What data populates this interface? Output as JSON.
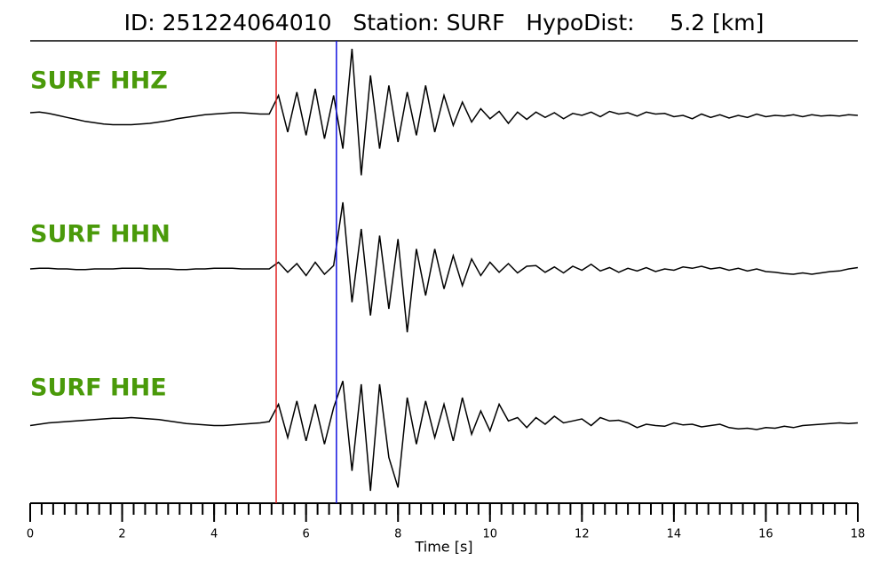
{
  "chart_data": {
    "type": "seismogram",
    "title": "ID: 251224064010   Station: SURF   HypoDist:     5.2 [km]",
    "xlabel": "Time [s]",
    "xlim": [
      0,
      18
    ],
    "xticks": [
      0,
      2,
      4,
      6,
      8,
      10,
      12,
      14,
      16,
      18
    ],
    "xminor_ticks": [
      0,
      0.25,
      0.5,
      0.75,
      1,
      1.25,
      1.5,
      1.75,
      2,
      2.25,
      2.5,
      2.75,
      3,
      3.25,
      3.5,
      3.75,
      4,
      4.25,
      4.5,
      4.75,
      5,
      5.25,
      5.5,
      5.75,
      6,
      6.25,
      6.5,
      6.75,
      7,
      7.25,
      7.5,
      7.75,
      8,
      8.25,
      8.5,
      8.75,
      9,
      9.25,
      9.5,
      9.75,
      10,
      10.25,
      10.5,
      10.75,
      11,
      11.25,
      11.5,
      11.75,
      12,
      12.25,
      12.5,
      12.75,
      13,
      13.25,
      13.5,
      13.75,
      14,
      14.25,
      14.5,
      14.75,
      15,
      15.25,
      15.5,
      15.75,
      16,
      16.25,
      16.5,
      16.75,
      17,
      17.25,
      17.5,
      17.75,
      18
    ],
    "ylim": [
      -1,
      1
    ],
    "picks": [
      {
        "color": "#e02020",
        "x": 5.35
      },
      {
        "color": "#1010e0",
        "x": 6.66
      }
    ],
    "x": [
      0,
      0.2,
      0.4,
      0.6,
      0.8,
      1,
      1.2,
      1.4,
      1.6,
      1.8,
      2,
      2.2,
      2.4,
      2.6,
      2.8,
      3,
      3.2,
      3.4,
      3.6,
      3.8,
      4,
      4.2,
      4.4,
      4.6,
      4.8,
      5,
      5.2,
      5.4,
      5.6,
      5.8,
      6,
      6.2,
      6.4,
      6.6,
      6.8,
      7,
      7.2,
      7.4,
      7.6,
      7.8,
      8,
      8.2,
      8.4,
      8.6,
      8.8,
      9,
      9.2,
      9.4,
      9.6,
      9.8,
      10,
      10.2,
      10.4,
      10.6,
      10.8,
      11,
      11.2,
      11.4,
      11.6,
      11.8,
      12,
      12.2,
      12.4,
      12.6,
      12.8,
      13,
      13.2,
      13.4,
      13.6,
      13.8,
      14,
      14.2,
      14.4,
      14.6,
      14.8,
      15,
      15.2,
      15.4,
      15.6,
      15.8,
      16,
      16.2,
      16.4,
      16.6,
      16.8,
      17,
      17.2,
      17.4,
      17.6,
      17.8,
      18
    ],
    "series": [
      {
        "name": "SURF HHZ",
        "color": "#000000",
        "values": [
          0.04,
          0.05,
          0.03,
          0.0,
          -0.03,
          -0.06,
          -0.09,
          -0.11,
          -0.13,
          -0.14,
          -0.14,
          -0.14,
          -0.13,
          -0.12,
          -0.1,
          -0.08,
          -0.05,
          -0.03,
          -0.01,
          0.01,
          0.02,
          0.03,
          0.04,
          0.04,
          0.03,
          0.02,
          0.02,
          0.3,
          -0.25,
          0.35,
          -0.3,
          0.4,
          -0.35,
          0.3,
          -0.5,
          1.0,
          -0.9,
          0.6,
          -0.5,
          0.45,
          -0.4,
          0.35,
          -0.3,
          0.45,
          -0.25,
          0.3,
          -0.15,
          0.2,
          -0.1,
          0.1,
          -0.05,
          0.06,
          -0.12,
          0.05,
          -0.06,
          0.05,
          -0.03,
          0.04,
          -0.05,
          0.03,
          0.0,
          0.05,
          -0.02,
          0.06,
          0.02,
          0.04,
          -0.01,
          0.05,
          0.02,
          0.03,
          -0.02,
          0.0,
          -0.05,
          0.02,
          -0.03,
          0.01,
          -0.04,
          0.0,
          -0.03,
          0.02,
          -0.02,
          0.0,
          -0.01,
          0.01,
          -0.02,
          0.01,
          -0.01,
          0.0,
          -0.01,
          0.01,
          0.0
        ]
      },
      {
        "name": "SURF HHN",
        "color": "#000000",
        "values": [
          0.0,
          0.01,
          0.01,
          0.0,
          0.0,
          -0.01,
          -0.01,
          0.0,
          0.0,
          0.0,
          0.01,
          0.01,
          0.01,
          0.0,
          0.0,
          0.0,
          -0.01,
          -0.01,
          0.0,
          0.0,
          0.01,
          0.01,
          0.01,
          0.0,
          0.0,
          0.0,
          0.0,
          0.1,
          -0.05,
          0.08,
          -0.1,
          0.1,
          -0.08,
          0.05,
          1.0,
          -0.5,
          0.6,
          -0.7,
          0.5,
          -0.6,
          0.45,
          -0.95,
          0.3,
          -0.4,
          0.3,
          -0.3,
          0.2,
          -0.25,
          0.15,
          -0.1,
          0.1,
          -0.05,
          0.08,
          -0.06,
          0.04,
          0.05,
          -0.05,
          0.03,
          -0.06,
          0.04,
          -0.02,
          0.07,
          -0.03,
          0.02,
          -0.05,
          0.01,
          -0.03,
          0.02,
          -0.04,
          0.0,
          -0.02,
          0.03,
          0.01,
          0.04,
          0.0,
          0.02,
          -0.02,
          0.01,
          -0.03,
          0.0,
          -0.04,
          -0.05,
          -0.07,
          -0.08,
          -0.06,
          -0.08,
          -0.06,
          -0.04,
          -0.03,
          0.0,
          0.02
        ]
      },
      {
        "name": "SURF HHE",
        "color": "#000000",
        "values": [
          -0.02,
          0.0,
          0.02,
          0.03,
          0.04,
          0.05,
          0.06,
          0.07,
          0.08,
          0.09,
          0.09,
          0.1,
          0.09,
          0.08,
          0.07,
          0.05,
          0.03,
          0.01,
          0.0,
          -0.01,
          -0.02,
          -0.02,
          -0.01,
          0.0,
          0.01,
          0.02,
          0.04,
          0.3,
          -0.2,
          0.35,
          -0.25,
          0.3,
          -0.3,
          0.25,
          0.65,
          -0.7,
          0.6,
          -1.0,
          0.6,
          -0.5,
          -0.95,
          0.4,
          -0.3,
          0.35,
          -0.2,
          0.3,
          -0.25,
          0.4,
          -0.15,
          0.2,
          -0.1,
          0.3,
          0.05,
          0.1,
          -0.05,
          0.1,
          0.0,
          0.12,
          0.02,
          0.05,
          0.08,
          -0.02,
          0.1,
          0.05,
          0.06,
          0.02,
          -0.05,
          0.0,
          -0.02,
          -0.03,
          0.02,
          -0.01,
          0.0,
          -0.04,
          -0.02,
          0.0,
          -0.05,
          -0.07,
          -0.06,
          -0.08,
          -0.05,
          -0.06,
          -0.03,
          -0.05,
          -0.02,
          -0.01,
          0.0,
          0.01,
          0.02,
          0.01,
          0.02
        ]
      }
    ]
  }
}
